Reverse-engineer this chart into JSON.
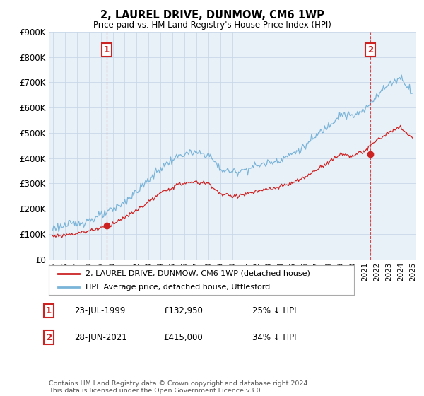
{
  "title": "2, LAUREL DRIVE, DUNMOW, CM6 1WP",
  "subtitle": "Price paid vs. HM Land Registry's House Price Index (HPI)",
  "ylim": [
    0,
    900000
  ],
  "yticks": [
    0,
    100000,
    200000,
    300000,
    400000,
    500000,
    600000,
    700000,
    800000,
    900000
  ],
  "ytick_labels": [
    "£0",
    "£100K",
    "£200K",
    "£300K",
    "£400K",
    "£500K",
    "£600K",
    "£700K",
    "£800K",
    "£900K"
  ],
  "hpi_color": "#7ab4d8",
  "price_color": "#cc2222",
  "chart_bg": "#e8f0f8",
  "marker1_month": 54,
  "marker1_price": 132950,
  "marker1_date_str": "23-JUL-1999",
  "marker1_price_str": "£132,950",
  "marker1_hpi_str": "25% ↓ HPI",
  "marker2_month": 318,
  "marker2_price": 415000,
  "marker2_date_str": "28-JUN-2021",
  "marker2_price_str": "£415,000",
  "marker2_hpi_str": "34% ↓ HPI",
  "legend_line1": "2, LAUREL DRIVE, DUNMOW, CM6 1WP (detached house)",
  "legend_line2": "HPI: Average price, detached house, Uttlesford",
  "footnote": "Contains HM Land Registry data © Crown copyright and database right 2024.\nThis data is licensed under the Open Government Licence v3.0.",
  "background_color": "#ffffff",
  "grid_color": "#c8d8e8",
  "start_year": 1995,
  "end_year": 2025
}
